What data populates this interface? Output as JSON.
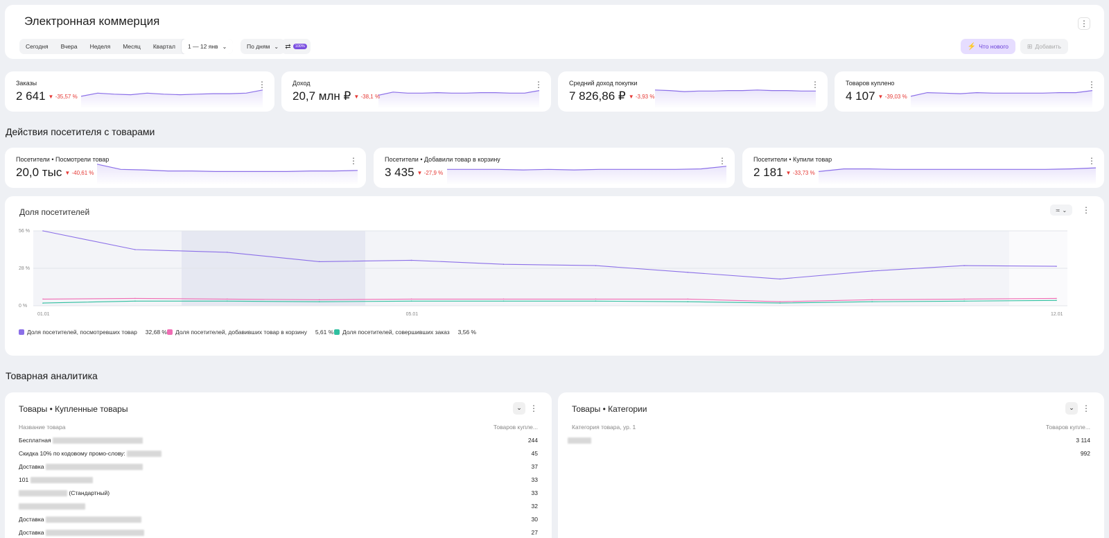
{
  "header": {
    "title": "Электронная коммерция",
    "periods": [
      "Сегодня",
      "Вчера",
      "Неделя",
      "Месяц",
      "Квартал"
    ],
    "date_range": "1 — 12 янв",
    "granularity": "По дням",
    "sampling_badge": "100%",
    "whats_new": "Что нового",
    "add": "Добавить"
  },
  "kpis": [
    {
      "label": "Заказы",
      "value": "2 641",
      "delta": "▼ -35,57 %",
      "trend": [
        24,
        30,
        28,
        27,
        30,
        28,
        27,
        28,
        29,
        29,
        30,
        36
      ]
    },
    {
      "label": "Доход",
      "value": "20,7 млн ₽",
      "delta": "▼ -38,1 %",
      "trend": [
        26,
        32,
        30,
        30,
        31,
        30,
        30,
        31,
        31,
        30,
        30,
        35
      ]
    },
    {
      "label": "Средний доход покупки",
      "value": "7 826,86 ₽",
      "delta": "▼ -3,93 %",
      "trend": [
        36,
        35,
        33,
        34,
        34,
        35,
        35,
        36,
        35,
        35,
        34,
        34
      ]
    },
    {
      "label": "Товаров куплено",
      "value": "4 107",
      "delta": "▼ -39,03 %",
      "trend": [
        24,
        31,
        30,
        29,
        31,
        30,
        30,
        30,
        30,
        31,
        31,
        35
      ]
    }
  ],
  "actions_section": "Действия посетителя с товарами",
  "action_kpis": [
    {
      "label": "Посетители • Посмотрели товар",
      "value": "20,0 тыс",
      "delta": "▼ -40,61 %",
      "trend": [
        40,
        30,
        29,
        27,
        27,
        26,
        26,
        26,
        26,
        27,
        27,
        28
      ]
    },
    {
      "label": "Посетители • Добавили товар в корзину",
      "value": "3 435",
      "delta": "▼ -27,9 %",
      "trend": [
        30,
        30,
        30,
        29,
        30,
        29,
        30,
        30,
        30,
        30,
        31,
        36
      ]
    },
    {
      "label": "Посетители • Купили товар",
      "value": "2 181",
      "delta": "▼ -33,73 %",
      "trend": [
        26,
        31,
        31,
        30,
        30,
        30,
        30,
        30,
        30,
        30,
        31,
        33
      ]
    }
  ],
  "share_chart": {
    "title": "Доля посетителей",
    "y_ticks": [
      "56 %",
      "28 %",
      "0 %"
    ],
    "x_ticks": [
      "01.01",
      "05.01",
      "12.01"
    ]
  },
  "chart_data": {
    "type": "line",
    "title": "Доля посетителей",
    "x": [
      "01.01",
      "02.01",
      "03.01",
      "04.01",
      "05.01",
      "06.01",
      "07.01",
      "08.01",
      "09.01",
      "10.01",
      "11.01",
      "12.01"
    ],
    "ylim": [
      0,
      56
    ],
    "series": [
      {
        "name": "Доля посетителей, посмотревших товар",
        "color": "#8b6fe8",
        "values": [
          56,
          42,
          40,
          33,
          34,
          31,
          30,
          25,
          20,
          26,
          30,
          29.5
        ]
      },
      {
        "name": "Доля посетителей, добавивших товар в корзину",
        "color": "#f06cb4",
        "values": [
          5,
          5.5,
          5,
          4.5,
          5,
          5,
          5,
          5,
          3,
          4.5,
          5,
          5.5
        ]
      },
      {
        "name": "Доля посетителей, совершивших заказ",
        "color": "#2fbf9f",
        "values": [
          2,
          3.5,
          3.5,
          3,
          3.5,
          3.5,
          3.5,
          3,
          2,
          3,
          3.5,
          4
        ]
      }
    ],
    "legend_values": [
      "32,68 %",
      "5,61 %",
      "3,56 %"
    ],
    "legend": "bottom-left"
  },
  "analytics_section": "Товарная аналитика",
  "products_table": {
    "title": "Товары • Купленные товары",
    "col_name": "Название товара",
    "col_value": "Товаров купле...",
    "rows": [
      {
        "name": "Бесплатная",
        "value": "244"
      },
      {
        "name": "Скидка 10% по кодовому промо-слову:",
        "value": "45"
      },
      {
        "name": "Доставка",
        "value": "37"
      },
      {
        "name": "101",
        "value": "33"
      },
      {
        "name": "(Стандартный)",
        "value": "33"
      },
      {
        "name": "",
        "value": "32"
      },
      {
        "name": "Доставка",
        "value": "30"
      },
      {
        "name": "Доставка",
        "value": "27"
      }
    ]
  },
  "categories_table": {
    "title": "Товары • Категории",
    "col_name": "Категория товара, ур. 1",
    "col_value": "Товаров купле...",
    "rows": [
      {
        "name": "",
        "value": "3 114"
      },
      {
        "name": "",
        "value": "992"
      }
    ]
  }
}
